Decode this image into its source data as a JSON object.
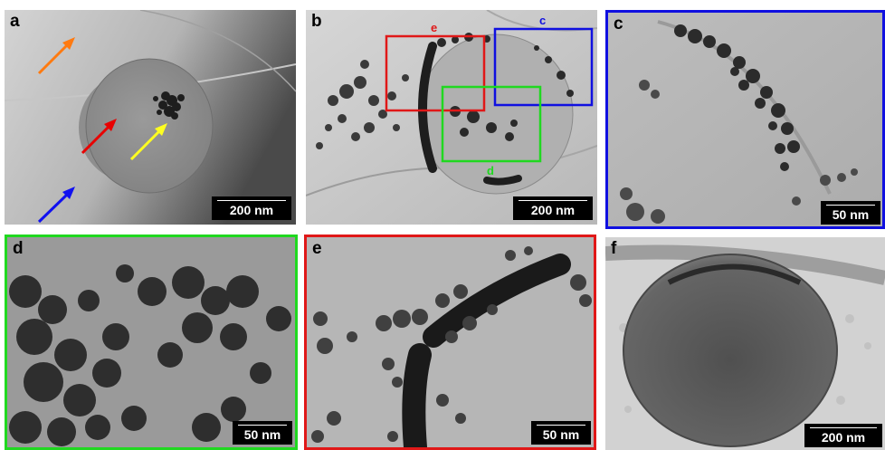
{
  "figure": {
    "panels": [
      {
        "letter": "a",
        "scale_label": "200 nm",
        "border_color": ""
      },
      {
        "letter": "b",
        "scale_label": "200 nm",
        "border_color": ""
      },
      {
        "letter": "c",
        "scale_label": "50 nm",
        "border_color": "#1010e0"
      },
      {
        "letter": "d",
        "scale_label": "50 nm",
        "border_color": "#20d820"
      },
      {
        "letter": "e",
        "scale_label": "50 nm",
        "border_color": "#e01818"
      },
      {
        "letter": "f",
        "scale_label": "200 nm",
        "border_color": ""
      }
    ],
    "inset_boxes": [
      {
        "label": "e",
        "color": "#e01818"
      },
      {
        "label": "c",
        "color": "#1010e0"
      },
      {
        "label": "d",
        "color": "#20d820"
      }
    ],
    "arrows": [
      {
        "name": "orange",
        "color": "#ff7a10"
      },
      {
        "name": "red",
        "color": "#e80000"
      },
      {
        "name": "yellow",
        "color": "#ffff20"
      },
      {
        "name": "blue",
        "color": "#1010f0"
      }
    ]
  }
}
